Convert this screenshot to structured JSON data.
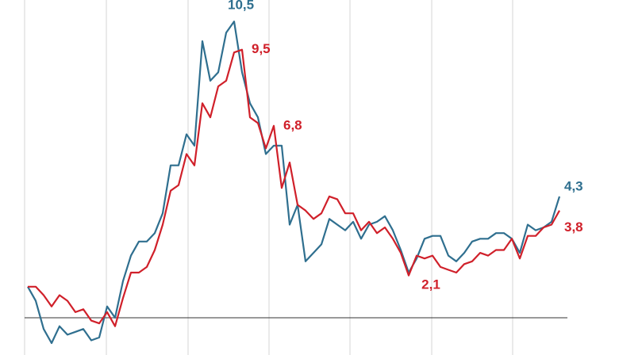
{
  "chart_data": {
    "type": "line",
    "series": [
      {
        "name": "Series 1",
        "color": "#2f6f8f",
        "values": [
          1.1,
          0.6,
          -0.4,
          -0.9,
          -0.3,
          -0.6,
          -0.5,
          -0.4,
          -0.8,
          -0.7,
          0.4,
          0.0,
          1.3,
          2.2,
          2.7,
          2.7,
          3.0,
          3.7,
          5.4,
          5.4,
          6.5,
          6.1,
          9.8,
          8.4,
          8.7,
          10.1,
          10.5,
          8.7,
          7.6,
          7.1,
          5.8,
          6.1,
          6.1,
          3.3,
          4.0,
          2.0,
          2.3,
          2.6,
          3.5,
          3.3,
          3.1,
          3.4,
          2.8,
          3.3,
          3.4,
          3.6,
          3.1,
          2.4,
          1.6,
          2.1,
          2.8,
          2.9,
          2.9,
          2.2,
          2.0,
          2.3,
          2.7,
          2.8,
          2.8,
          3.0,
          3.0,
          2.8,
          2.3,
          3.3,
          3.1,
          3.2,
          3.4,
          4.3
        ],
        "value_labels": [
          null,
          null,
          null,
          null,
          null,
          null,
          null,
          null,
          null,
          null,
          null,
          null,
          null,
          null,
          null,
          null,
          null,
          null,
          null,
          null,
          null,
          null,
          null,
          null,
          null,
          null,
          "10,5",
          null,
          null,
          null,
          null,
          null,
          null,
          null,
          null,
          null,
          null,
          null,
          null,
          null,
          null,
          null,
          null,
          null,
          null,
          null,
          null,
          null,
          null,
          null,
          null,
          null,
          null,
          null,
          null,
          null,
          null,
          null,
          null,
          null,
          null,
          null,
          null,
          null,
          null,
          null,
          null,
          "4,3"
        ]
      },
      {
        "name": "Series 2",
        "color": "#d0202a",
        "values": [
          1.1,
          1.1,
          0.8,
          0.4,
          0.8,
          0.6,
          0.2,
          0.3,
          -0.1,
          -0.2,
          0.2,
          -0.3,
          0.7,
          1.6,
          1.6,
          1.8,
          2.4,
          3.3,
          4.5,
          4.7,
          5.8,
          5.4,
          7.6,
          7.1,
          8.2,
          8.4,
          9.4,
          9.5,
          7.1,
          6.9,
          6.0,
          6.8,
          4.6,
          5.5,
          4.0,
          3.8,
          3.5,
          3.7,
          4.3,
          4.2,
          3.7,
          3.7,
          3.1,
          3.4,
          3.0,
          3.2,
          2.8,
          2.3,
          1.5,
          2.2,
          2.1,
          2.2,
          1.8,
          1.7,
          1.6,
          1.9,
          2.0,
          2.3,
          2.2,
          2.4,
          2.4,
          2.8,
          2.1,
          2.9,
          2.9,
          3.2,
          3.3,
          3.8
        ],
        "value_labels": [
          null,
          null,
          null,
          null,
          null,
          null,
          null,
          null,
          null,
          null,
          null,
          null,
          null,
          null,
          null,
          null,
          null,
          null,
          null,
          null,
          null,
          null,
          null,
          null,
          null,
          null,
          null,
          "9,5",
          null,
          null,
          null,
          "6,8",
          null,
          null,
          null,
          null,
          null,
          null,
          null,
          null,
          null,
          null,
          null,
          null,
          null,
          null,
          null,
          null,
          null,
          null,
          "2,1",
          null,
          null,
          null,
          null,
          null,
          null,
          null,
          null,
          null,
          null,
          null,
          null,
          null,
          null,
          null,
          null,
          "3,8"
        ]
      }
    ],
    "ylim": [
      -1.32,
      11.26
    ]
  }
}
